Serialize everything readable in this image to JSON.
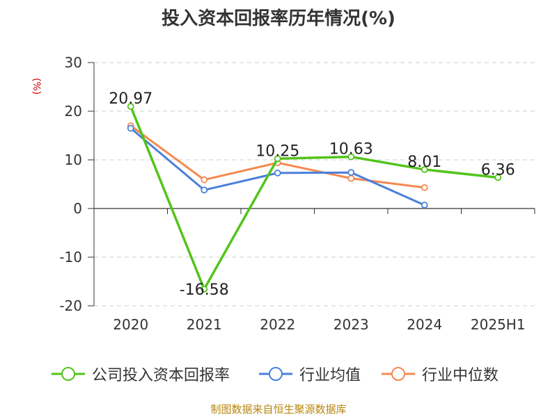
{
  "chart_data": {
    "type": "line",
    "title": "投入资本回报率历年情况(%)",
    "ylabel": "(%)",
    "xlabel": "",
    "categories": [
      "2020",
      "2021",
      "2022",
      "2023",
      "2024",
      "2025H1"
    ],
    "ylim": [
      -20,
      30
    ],
    "yticks": [
      30,
      20,
      10,
      0,
      -10,
      -20
    ],
    "grid": true,
    "legend_position": "bottom",
    "series": [
      {
        "name": "公司投入资本回报率",
        "color": "#52c41a",
        "values": [
          20.97,
          -16.58,
          10.25,
          10.63,
          8.01,
          6.36
        ],
        "labels": [
          "20.97",
          "-16.58",
          "10.25",
          "10.63",
          "8.01",
          "6.36"
        ]
      },
      {
        "name": "行业均值",
        "color": "#4a7fdc",
        "values": [
          16.5,
          3.8,
          7.3,
          7.4,
          0.7,
          null
        ]
      },
      {
        "name": "行业中位数",
        "color": "#f5894f",
        "values": [
          17.0,
          5.9,
          9.4,
          6.2,
          4.3,
          null
        ]
      }
    ]
  },
  "source": "制图数据来自恒生聚源数据库"
}
